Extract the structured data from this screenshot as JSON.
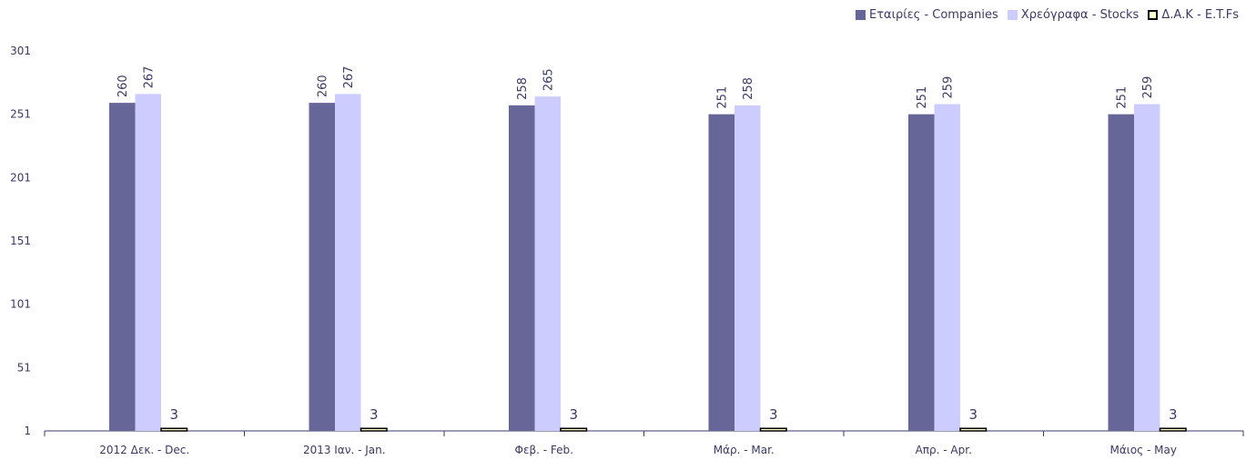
{
  "chart_data": {
    "type": "bar",
    "categories": [
      "2012 Δεκ. - Dec.",
      "2013 Ιαν. - Jan.",
      "Φεβ. - Feb.",
      "Μάρ. - Mar.",
      "Απρ. - Apr.",
      "Μάιος - May"
    ],
    "series": [
      {
        "name": "Εταιρίες - Companies",
        "values": [
          260,
          260,
          258,
          251,
          251,
          251
        ],
        "color": "#666699"
      },
      {
        "name": "Χρεόγραφα - Stocks",
        "values": [
          267,
          267,
          265,
          258,
          259,
          259
        ],
        "color": "#ccccff"
      },
      {
        "name": "Δ.Α.Κ - E.T.Fs",
        "values": [
          3,
          3,
          3,
          3,
          3,
          3
        ],
        "color": "#ffffcc",
        "border": "#000000"
      }
    ],
    "ylim": [
      1,
      301
    ],
    "yticks": [
      1,
      51,
      101,
      151,
      201,
      251,
      301
    ],
    "legend_position": "top-right",
    "grid": false
  }
}
